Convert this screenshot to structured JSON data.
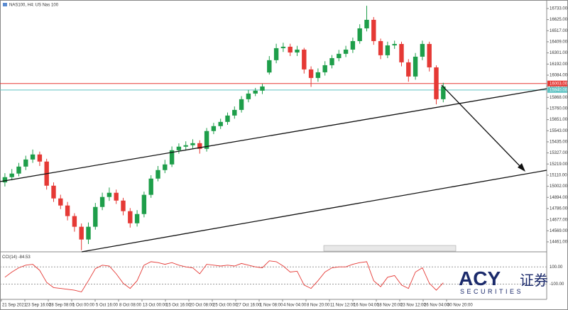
{
  "chart_data": {
    "type": "candlestick",
    "title": "NAS100, H4:  US Nas 100",
    "x_labels": [
      "21 Sep 2021",
      "23 Sep 16:00",
      "28 Sep 08:00",
      "1 Oct 00:00",
      "5 Oct 16:00",
      "8 Oct 08:00",
      "13 Oct 00:00",
      "15 Oct 16:00",
      "20 Oct 08:00",
      "25 Oct 00:00",
      "27 Oct 16:00",
      "1 Nov 08:00",
      "4 Nov 04:00",
      "8 Nov 20:00",
      "11 Nov 12:00",
      "16 Nov 04:00",
      "18 Nov 20:00",
      "23 Nov 12:00",
      "26 Nov 04:00",
      "30 Nov 20:00"
    ],
    "open": [
      15040,
      15091,
      15126,
      15194,
      15263,
      15312,
      15243,
      15008,
      14884,
      14815,
      14712,
      14608,
      14484,
      14608,
      14801,
      14898,
      14939,
      14863,
      14760,
      14642,
      14732,
      14919,
      15077,
      15160,
      15215,
      15353,
      15388,
      15402,
      15422,
      15367,
      15540,
      15588,
      15629,
      15691,
      15746,
      15850,
      15905,
      15933,
      16110,
      16230,
      16347,
      16361,
      16305,
      16333,
      16140,
      16057,
      16112,
      16181,
      16250,
      16292,
      16333,
      16416,
      16540,
      16623,
      16416,
      16278,
      16374,
      16388,
      16209,
      16071,
      16264,
      16388,
      16160,
      15850
    ],
    "high": [
      15130,
      15170,
      15230,
      15300,
      15360,
      15340,
      15270,
      15040,
      14920,
      14850,
      14740,
      14640,
      14650,
      14840,
      14940,
      14990,
      14970,
      14890,
      14790,
      14770,
      14950,
      15110,
      15200,
      15260,
      15390,
      15420,
      15440,
      15460,
      15450,
      15570,
      15620,
      15660,
      15720,
      15780,
      15880,
      15940,
      15960,
      16000,
      16270,
      16390,
      16400,
      16390,
      16370,
      16350,
      16170,
      16150,
      16220,
      16280,
      16330,
      16370,
      16450,
      16580,
      16760,
      16650,
      16440,
      16410,
      16420,
      16410,
      16240,
      16300,
      16420,
      16410,
      16180,
      16010
    ],
    "low": [
      15000,
      15060,
      15100,
      15160,
      15230,
      15200,
      14970,
      14850,
      14780,
      14670,
      14560,
      14380,
      14440,
      14580,
      14770,
      14860,
      14830,
      14720,
      14600,
      14610,
      14700,
      14890,
      15050,
      15130,
      15190,
      15320,
      15350,
      15370,
      15320,
      15340,
      15510,
      15560,
      15600,
      15660,
      15720,
      15820,
      15880,
      15900,
      16090,
      16200,
      16310,
      16270,
      16270,
      16100,
      15970,
      16020,
      16080,
      16150,
      16220,
      16260,
      16300,
      16390,
      16510,
      16380,
      16240,
      16250,
      16340,
      16170,
      16020,
      16040,
      16230,
      16120,
      15800,
      15820
    ],
    "close": [
      15091,
      15126,
      15194,
      15263,
      15312,
      15243,
      15008,
      14884,
      14815,
      14712,
      14608,
      14484,
      14608,
      14801,
      14898,
      14939,
      14863,
      14760,
      14642,
      14732,
      14919,
      15077,
      15160,
      15215,
      15353,
      15388,
      15402,
      15422,
      15367,
      15540,
      15588,
      15629,
      15691,
      15746,
      15850,
      15905,
      15933,
      15974,
      16230,
      16347,
      16361,
      16305,
      16333,
      16140,
      16057,
      16112,
      16181,
      16250,
      16292,
      16333,
      16416,
      16540,
      16623,
      16416,
      16278,
      16374,
      16388,
      16209,
      16071,
      16264,
      16388,
      16160,
      15850,
      15974
    ],
    "up_color": "#1e9e4a",
    "down_color": "#e53935",
    "ylim": [
      14364,
      16816
    ],
    "yticks": [
      {
        "value": 16733,
        "label": "16733.00"
      },
      {
        "value": 16625,
        "label": "16625.00"
      },
      {
        "value": 16517,
        "label": "16517.00"
      },
      {
        "value": 16409,
        "label": "16409.00"
      },
      {
        "value": 16301,
        "label": "16301.00"
      },
      {
        "value": 16192,
        "label": "16192.00"
      },
      {
        "value": 16084,
        "label": "16084.00"
      },
      {
        "value": 15976,
        "label": "15976.00"
      },
      {
        "value": 15868,
        "label": "15868.00"
      },
      {
        "value": 15760,
        "label": "15760.00"
      },
      {
        "value": 15651,
        "label": "15651.00"
      },
      {
        "value": 15543,
        "label": "15543.00"
      },
      {
        "value": 15435,
        "label": "15435.00"
      },
      {
        "value": 15327,
        "label": "15327.00"
      },
      {
        "value": 15219,
        "label": "15219.00"
      },
      {
        "value": 15110,
        "label": "15110.00"
      },
      {
        "value": 15002,
        "label": "15002.00"
      },
      {
        "value": 14894,
        "label": "14894.00"
      },
      {
        "value": 14786,
        "label": "14786.00"
      },
      {
        "value": 14677,
        "label": "14677.00"
      },
      {
        "value": 14569,
        "label": "14569.00"
      },
      {
        "value": 14461,
        "label": "14461.00"
      }
    ],
    "levels": [
      {
        "value": 16003,
        "label": "16003.00",
        "color": "#e53935"
      },
      {
        "value": 15940,
        "label": "15940.00",
        "color": "#5fc3c3"
      }
    ],
    "indicator": {
      "type": "line",
      "name": "CCI(14)",
      "color": "#e53935",
      "values": [
        -20,
        40,
        90,
        120,
        130,
        60,
        -80,
        -140,
        -150,
        -160,
        -170,
        -190,
        -60,
        80,
        120,
        110,
        20,
        -90,
        -150,
        -60,
        120,
        160,
        150,
        130,
        150,
        120,
        100,
        90,
        20,
        130,
        120,
        110,
        120,
        110,
        140,
        120,
        100,
        90,
        170,
        160,
        110,
        40,
        50,
        -110,
        -150,
        -60,
        40,
        90,
        100,
        100,
        130,
        150,
        160,
        -60,
        -130,
        -20,
        0,
        -110,
        -150,
        40,
        90,
        -90,
        -170,
        -84.53
      ],
      "ylim": [
        -260,
        250
      ],
      "yticks": [
        {
          "value": 100,
          "label": "100.00"
        },
        {
          "value": -100,
          "label": "-100.00"
        }
      ]
    }
  },
  "logo": {
    "brand": "ACY",
    "sub": "SECURITIES",
    "cn": "证券"
  }
}
